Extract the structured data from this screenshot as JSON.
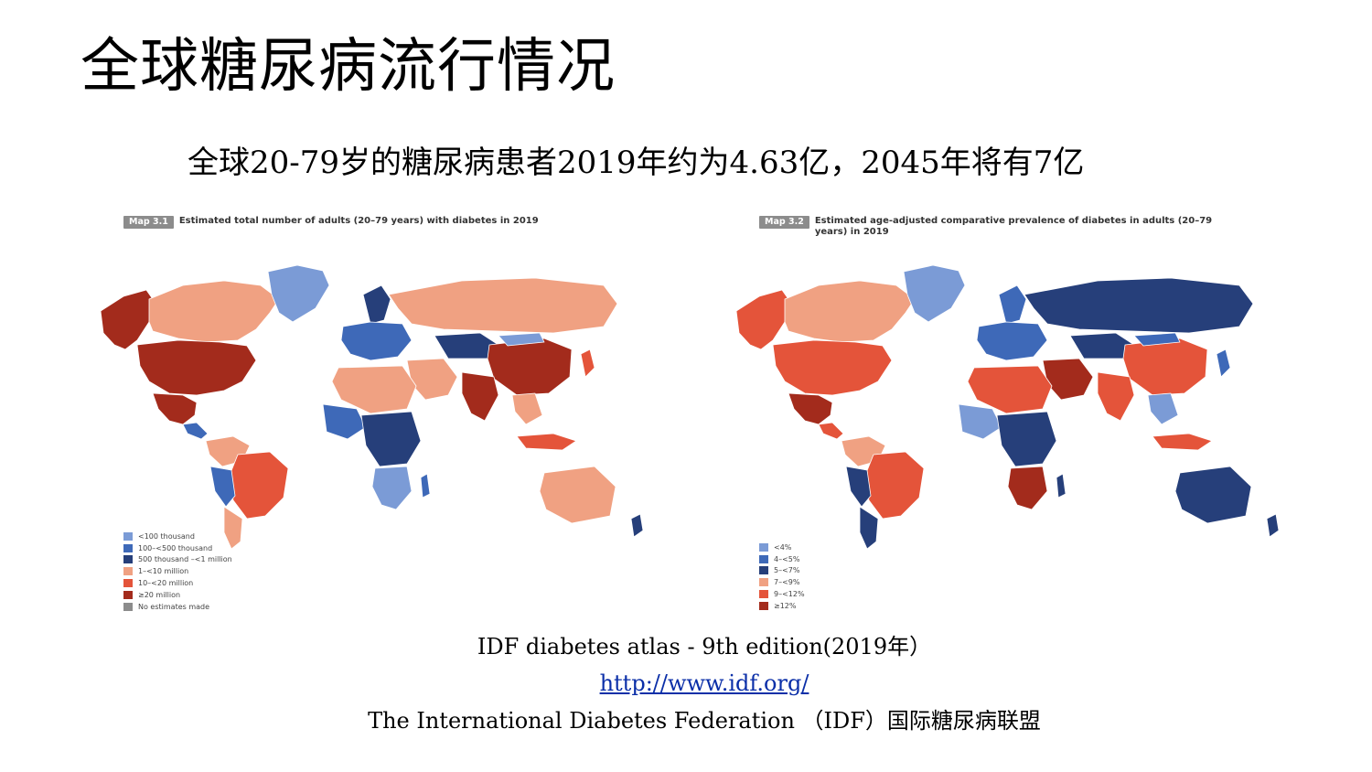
{
  "slide": {
    "title": "全球糖尿病流行情况",
    "subtitle": "全球20-79岁的糖尿病患者2019年约为4.63亿，2045年将有7亿"
  },
  "maps": [
    {
      "tag": "Map 3.1",
      "caption": "Estimated total number of adults (20–79 years) with diabetes in 2019",
      "legend": [
        {
          "label": "<100 thousand",
          "color": "#7b9bd6"
        },
        {
          "label": "100–<500 thousand",
          "color": "#3e69b8"
        },
        {
          "label": "500 thousand –<1 million",
          "color": "#263f7a"
        },
        {
          "label": "1–<10 million",
          "color": "#f0a182"
        },
        {
          "label": "10–<20 million",
          "color": "#e4543a"
        },
        {
          "label": "≥20 million",
          "color": "#a32b1c"
        },
        {
          "label": "No estimates made",
          "color": "#8c8c8c"
        }
      ]
    },
    {
      "tag": "Map 3.2",
      "caption": "Estimated age-adjusted comparative prevalence of diabetes in adults (20–79 years) in 2019",
      "legend": [
        {
          "label": "<4%",
          "color": "#7b9bd6"
        },
        {
          "label": "4–<5%",
          "color": "#3e69b8"
        },
        {
          "label": "5–<7%",
          "color": "#263f7a"
        },
        {
          "label": "7–<9%",
          "color": "#f0a182"
        },
        {
          "label": "9–<12%",
          "color": "#e4543a"
        },
        {
          "label": "≥12%",
          "color": "#a32b1c"
        }
      ]
    }
  ],
  "source": {
    "atlas": "IDF diabetes atlas - 9th edition(2019年）",
    "url": "http://www.idf.org/",
    "organization": "The International Diabetes Federation （IDF）国际糖尿病联盟"
  }
}
